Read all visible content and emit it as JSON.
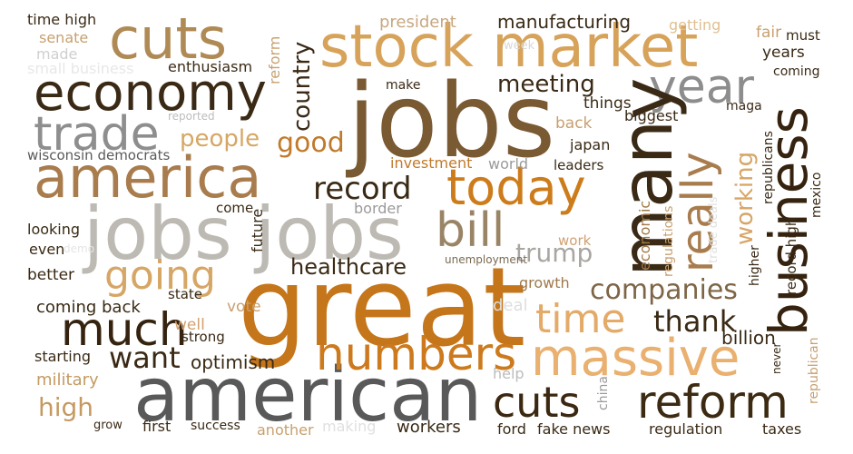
{
  "words": [
    {
      "text": "jobs",
      "color": "#7a5a33",
      "rot": false
    },
    {
      "text": "great",
      "color": "#c5761b",
      "rot": false
    },
    {
      "text": "american",
      "color": "#595959",
      "rot": false
    },
    {
      "text": "jobs jobs",
      "color": "#bdbab4",
      "rot": false
    },
    {
      "text": "stock market",
      "color": "#d7a35a",
      "rot": false
    },
    {
      "text": "america",
      "color": "#a87c4d",
      "rot": false
    },
    {
      "text": "economy",
      "color": "#3a2a15",
      "rot": false
    },
    {
      "text": "cuts",
      "color": "#b08a55",
      "rot": false
    },
    {
      "text": "massive",
      "color": "#e9b06f",
      "rot": false
    },
    {
      "text": "numbers",
      "color": "#cd7a1e",
      "rot": false
    },
    {
      "text": "today",
      "color": "#cd7c1c",
      "rot": false
    },
    {
      "text": "trade",
      "color": "#8e8e8e",
      "rot": false
    },
    {
      "text": "cuts",
      "color": "#3c2810",
      "rot": false
    },
    {
      "text": "reform",
      "color": "#3c2a12",
      "rot": false
    },
    {
      "text": "bill",
      "color": "#9a8466",
      "rot": false
    },
    {
      "text": "year",
      "color": "#8d8d8d",
      "rot": false
    },
    {
      "text": "time",
      "color": "#e3aa68",
      "rot": false
    },
    {
      "text": "much",
      "color": "#35230f",
      "rot": false
    },
    {
      "text": "going",
      "color": "#d6a666",
      "rot": false
    },
    {
      "text": "record",
      "color": "#3a2a15",
      "rot": false
    },
    {
      "text": "companies",
      "color": "#7e6546",
      "rot": false
    },
    {
      "text": "want",
      "color": "#3a2a15",
      "rot": false
    },
    {
      "text": "thank",
      "color": "#3a2a15",
      "rot": false
    },
    {
      "text": "good",
      "color": "#c07a2a",
      "rot": false
    },
    {
      "text": "people",
      "color": "#d6a764",
      "rot": false
    },
    {
      "text": "healthcare",
      "color": "#3a2a15",
      "rot": false
    },
    {
      "text": "trump",
      "color": "#a9a5a0",
      "rot": false
    },
    {
      "text": "meeting",
      "color": "#3a2a15",
      "rot": false
    },
    {
      "text": "high",
      "color": "#c49a62",
      "rot": false
    },
    {
      "text": "optimism",
      "color": "#3a2a15",
      "rot": false
    },
    {
      "text": "billion",
      "color": "#3a2a15",
      "rot": false
    },
    {
      "text": "manufacturing",
      "color": "#3a2a15",
      "rot": false
    },
    {
      "text": "president",
      "color": "#c8a880",
      "rot": false
    },
    {
      "text": "time high",
      "color": "#3a2a15",
      "rot": false
    },
    {
      "text": "senate",
      "color": "#c8a070",
      "rot": false
    },
    {
      "text": "made",
      "color": "#cfcfcf",
      "rot": false
    },
    {
      "text": "small business",
      "color": "#e8e8e8",
      "rot": false
    },
    {
      "text": "enthusiasm",
      "color": "#3a2a15",
      "rot": false
    },
    {
      "text": "make",
      "color": "#3a2a15",
      "rot": false
    },
    {
      "text": "reported",
      "color": "#bcbcbc",
      "rot": false
    },
    {
      "text": "wisconsin democrats",
      "color": "#5a5a5a",
      "rot": false
    },
    {
      "text": "investment",
      "color": "#c07a2a",
      "rot": false
    },
    {
      "text": "world",
      "color": "#9a9a9a",
      "rot": false
    },
    {
      "text": "come",
      "color": "#3a2a15",
      "rot": false
    },
    {
      "text": "border",
      "color": "#9a9a9a",
      "rot": false
    },
    {
      "text": "looking",
      "color": "#3a2a15",
      "rot": false
    },
    {
      "text": "even",
      "color": "#3a2a15",
      "rot": false
    },
    {
      "text": "demo",
      "color": "#e5e5e5",
      "rot": false
    },
    {
      "text": "unemployment",
      "color": "#7a6a50",
      "rot": false
    },
    {
      "text": "work",
      "color": "#d0a070",
      "rot": false
    },
    {
      "text": "better",
      "color": "#3a2a15",
      "rot": false
    },
    {
      "text": "state",
      "color": "#3a2a15",
      "rot": false
    },
    {
      "text": "deal",
      "color": "#dedede",
      "rot": false
    },
    {
      "text": "growth",
      "color": "#a07a4a",
      "rot": false
    },
    {
      "text": "coming back",
      "color": "#3a2a15",
      "rot": false
    },
    {
      "text": "vote",
      "color": "#c8a070",
      "rot": false
    },
    {
      "text": "well",
      "color": "#d0a070",
      "rot": false
    },
    {
      "text": "strong",
      "color": "#3a2a15",
      "rot": false
    },
    {
      "text": "starting",
      "color": "#3a2a15",
      "rot": false
    },
    {
      "text": "military",
      "color": "#c49a62",
      "rot": false
    },
    {
      "text": "help",
      "color": "#bcbcbc",
      "rot": false
    },
    {
      "text": "grow",
      "color": "#3a2a15",
      "rot": false
    },
    {
      "text": "first",
      "color": "#3a2a15",
      "rot": false
    },
    {
      "text": "success",
      "color": "#3a2a15",
      "rot": false
    },
    {
      "text": "another",
      "color": "#c8a070",
      "rot": false
    },
    {
      "text": "making",
      "color": "#e0e0e0",
      "rot": false
    },
    {
      "text": "workers",
      "color": "#3a2a15",
      "rot": false
    },
    {
      "text": "ford",
      "color": "#3a2a15",
      "rot": false
    },
    {
      "text": "fake news",
      "color": "#3a2a15",
      "rot": false
    },
    {
      "text": "regulation",
      "color": "#3a2a15",
      "rot": false
    },
    {
      "text": "taxes",
      "color": "#3a2a15",
      "rot": false
    },
    {
      "text": "week",
      "color": "#d8d8d8",
      "rot": false
    },
    {
      "text": "getting",
      "color": "#e0c090",
      "rot": false
    },
    {
      "text": "fair",
      "color": "#c8a070",
      "rot": false
    },
    {
      "text": "must",
      "color": "#3a2a15",
      "rot": false
    },
    {
      "text": "years",
      "color": "#3a2a15",
      "rot": false
    },
    {
      "text": "coming",
      "color": "#3a2a15",
      "rot": false
    },
    {
      "text": "maga",
      "color": "#3a2a15",
      "rot": false
    },
    {
      "text": "biggest",
      "color": "#3a2a15",
      "rot": false
    },
    {
      "text": "things",
      "color": "#3a2a15",
      "rot": false
    },
    {
      "text": "back",
      "color": "#c8a070",
      "rot": false
    },
    {
      "text": "japan",
      "color": "#3a2a15",
      "rot": false
    },
    {
      "text": "leaders",
      "color": "#3a2a15",
      "rot": false
    },
    {
      "text": "many",
      "color": "#3a2a15",
      "rot": true
    },
    {
      "text": "really",
      "color": "#a87c4d",
      "rot": true
    },
    {
      "text": "business",
      "color": "#35230f",
      "rot": true
    },
    {
      "text": "country",
      "color": "#3a2a15",
      "rot": true
    },
    {
      "text": "working",
      "color": "#d6a666",
      "rot": true
    },
    {
      "text": "reform",
      "color": "#c8a070",
      "rot": true
    },
    {
      "text": "future",
      "color": "#3a2a15",
      "rot": true
    },
    {
      "text": "economic",
      "color": "#a07a4a",
      "rot": true
    },
    {
      "text": "regulations",
      "color": "#c8a070",
      "rot": true
    },
    {
      "text": "trade deals",
      "color": "#e0e0e0",
      "rot": true
    },
    {
      "text": "higher",
      "color": "#3a2a15",
      "rot": true
    },
    {
      "text": "republicans",
      "color": "#3a2a15",
      "rot": true
    },
    {
      "text": "record high",
      "color": "#3a2a15",
      "rot": true
    },
    {
      "text": "mexico",
      "color": "#3a2a15",
      "rot": true
    },
    {
      "text": "republican",
      "color": "#c8a070",
      "rot": true
    },
    {
      "text": "never",
      "color": "#3a2a15",
      "rot": true
    },
    {
      "text": "china",
      "color": "#9a9a9a",
      "rot": true
    }
  ]
}
